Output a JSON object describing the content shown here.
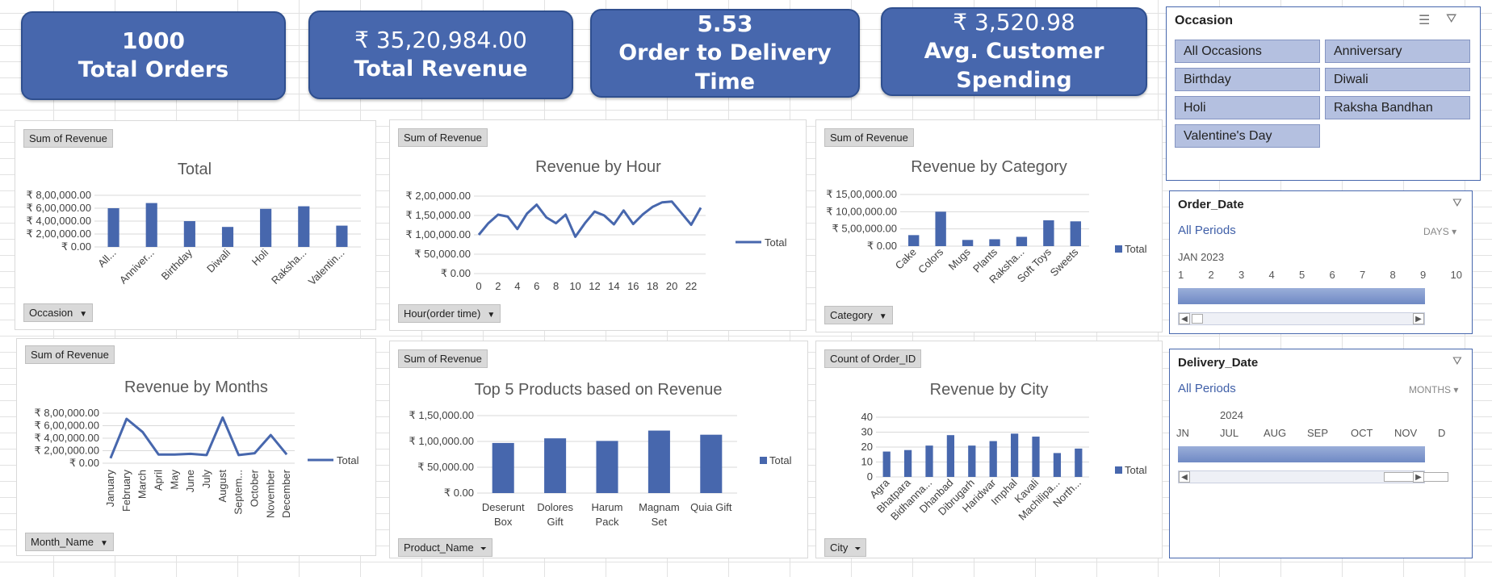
{
  "kpis": [
    {
      "value": "1000",
      "label": "Total Orders"
    },
    {
      "value": "₹ 35,20,984.00",
      "label": "Total Revenue"
    },
    {
      "value": "5.53",
      "label": "Order to Delivery Time"
    },
    {
      "value": "₹ 3,520.98",
      "label": "Avg. Customer Spending"
    }
  ],
  "legend_label": "Total",
  "charts": {
    "occasion": {
      "field_button": "Sum of Revenue",
      "axis_button": "Occasion",
      "chart_data": {
        "type": "bar",
        "title": "Total",
        "categories": [
          "All...",
          "Anniver...",
          "Birthday",
          "Diwali",
          "Holi",
          "Raksha...",
          "Valentin..."
        ],
        "values": [
          600000,
          680000,
          400000,
          310000,
          590000,
          630000,
          330000
        ],
        "ylim": [
          0,
          800000
        ],
        "yticks": [
          "₹ 8,00,000.00",
          "₹ 6,00,000.00",
          "₹ 4,00,000.00",
          "₹ 2,00,000.00",
          "₹ 0.00"
        ],
        "legend": false
      }
    },
    "hour": {
      "field_button": "Sum of Revenue",
      "axis_button": "Hour(order time)",
      "chart_data": {
        "type": "line",
        "title": "Revenue by Hour",
        "x": [
          0,
          1,
          2,
          3,
          4,
          5,
          6,
          7,
          8,
          9,
          10,
          11,
          12,
          13,
          14,
          15,
          16,
          17,
          18,
          19,
          20,
          21,
          22,
          23
        ],
        "values": [
          100000,
          130000,
          152000,
          147000,
          115000,
          155000,
          178000,
          145000,
          130000,
          152000,
          95000,
          130000,
          160000,
          150000,
          127000,
          163000,
          128000,
          153000,
          172000,
          184000,
          186000,
          156000,
          126000,
          170000
        ],
        "ylim": [
          0,
          200000
        ],
        "yticks": [
          "₹ 2,00,000.00",
          "₹ 1,50,000.00",
          "₹ 1,00,000.00",
          "₹ 50,000.00",
          "₹ 0.00"
        ],
        "xticks": [
          "0",
          "2",
          "4",
          "6",
          "8",
          "10",
          "12",
          "14",
          "16",
          "18",
          "20",
          "22"
        ],
        "legend": true
      }
    },
    "category": {
      "field_button": "Sum of Revenue",
      "axis_button": "Category",
      "chart_data": {
        "type": "bar",
        "title": "Revenue by Category",
        "categories": [
          "Cake",
          "Colors",
          "Mugs",
          "Plants",
          "Raksha...",
          "Soft Toys",
          "Sweets"
        ],
        "values": [
          320000,
          1000000,
          180000,
          200000,
          270000,
          750000,
          720000
        ],
        "ylim": [
          0,
          1500000
        ],
        "yticks": [
          "₹ 15,00,000.00",
          "₹ 10,00,000.00",
          "₹ 5,00,000.00",
          "₹ 0.00"
        ],
        "legend": true
      }
    },
    "months": {
      "field_button": "Sum of Revenue",
      "axis_button": "Month_Name",
      "chart_data": {
        "type": "line",
        "title": "Revenue by Months",
        "categories": [
          "January",
          "February",
          "March",
          "April",
          "May",
          "June",
          "July",
          "August",
          "Septem...",
          "October",
          "November",
          "December"
        ],
        "values": [
          80000,
          710000,
          500000,
          140000,
          140000,
          150000,
          130000,
          730000,
          130000,
          160000,
          450000,
          140000
        ],
        "ylim": [
          0,
          800000
        ],
        "yticks": [
          "₹ 8,00,000.00",
          "₹ 6,00,000.00",
          "₹ 4,00,000.00",
          "₹ 2,00,000.00",
          "₹ 0.00"
        ],
        "legend": true
      }
    },
    "products": {
      "field_button": "Sum of Revenue",
      "axis_button": "Product_Name",
      "chart_data": {
        "type": "bar",
        "title": "Top 5 Products based on Revenue",
        "categories": [
          [
            "Deserunt",
            "Box"
          ],
          [
            "Dolores",
            "Gift"
          ],
          [
            "Harum",
            "Pack"
          ],
          [
            "Magnam",
            "Set"
          ],
          [
            "Quia Gift"
          ]
        ],
        "values": [
          97000,
          106000,
          101000,
          121000,
          113000
        ],
        "ylim": [
          0,
          150000
        ],
        "yticks": [
          "₹ 1,50,000.00",
          "₹ 1,00,000.00",
          "₹ 50,000.00",
          "₹ 0.00"
        ],
        "legend": true
      }
    },
    "city": {
      "field_button": "Count of Order_ID",
      "axis_button": "City",
      "chart_data": {
        "type": "bar",
        "title": "Revenue by City",
        "categories": [
          "Agra",
          "Bhatpara",
          "Bidhanna...",
          "Dhanbad",
          "Dibrugarh",
          "Haridwar",
          "Imphal",
          "Kavali",
          "Machilipa...",
          "North..."
        ],
        "values": [
          17,
          18,
          21,
          28,
          21,
          24,
          29,
          27,
          16,
          19
        ],
        "ylim": [
          0,
          40
        ],
        "yticks": [
          "40",
          "30",
          "20",
          "10",
          "0"
        ],
        "legend": true
      }
    }
  },
  "occasion_slicer": {
    "title": "Occasion",
    "items": [
      "All Occasions",
      "Anniversary",
      "Birthday",
      "Diwali",
      "Holi",
      "Raksha Bandhan",
      "Valentine's Day"
    ]
  },
  "order_date": {
    "title": "Order_Date",
    "all_periods": "All Periods",
    "unit": "DAYS",
    "period_label": "JAN 2023",
    "ticks": [
      "1",
      "2",
      "3",
      "4",
      "5",
      "6",
      "7",
      "8",
      "9",
      "10"
    ]
  },
  "delivery_date": {
    "title": "Delivery_Date",
    "all_periods": "All Periods",
    "unit": "MONTHS",
    "period_label": "2024",
    "ticks": [
      "JN",
      "JUL",
      "AUG",
      "SEP",
      "OCT",
      "NOV",
      "D"
    ]
  },
  "colors": {
    "accent": "#4767ad",
    "bar": "#4767ad",
    "slicer_item": "#b4c0e0"
  }
}
